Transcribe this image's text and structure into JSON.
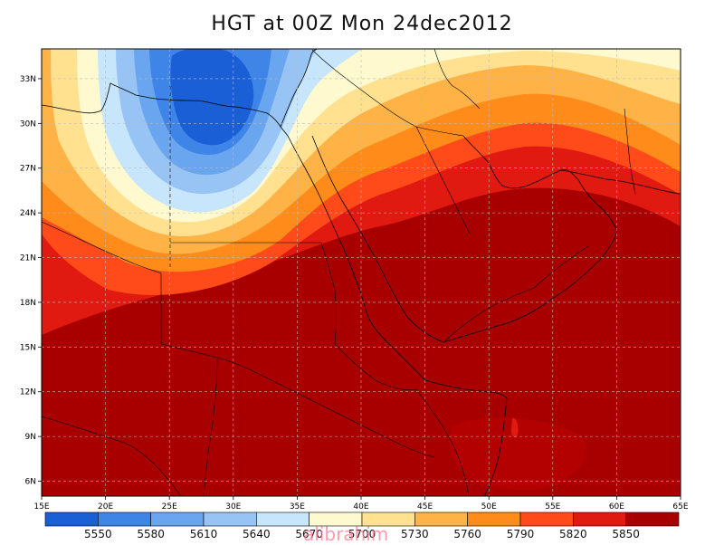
{
  "map": {
    "title": "HGT at 00Z Mon 24dec2012",
    "variable": "HGT",
    "lon_range": [
      15,
      65
    ],
    "lat_range": [
      5,
      35
    ],
    "lat_ticks": [
      "33N",
      "30N",
      "27N",
      "24N",
      "21N",
      "18N",
      "15N",
      "12N",
      "9N",
      "6N"
    ],
    "lon_ticks": [
      "15E",
      "20E",
      "25E",
      "30E",
      "35E",
      "40E",
      "45E",
      "50E",
      "55E",
      "60E",
      "65E"
    ],
    "grid_lines": true,
    "colorbar": {
      "levels": [
        "5550",
        "5580",
        "5610",
        "5640",
        "5670",
        "5700",
        "5730",
        "5760",
        "5790",
        "5820",
        "5850"
      ],
      "colors": [
        "#1a5fd6",
        "#3f85e8",
        "#6aa6f0",
        "#97c4f5",
        "#c8e6fb",
        "#fff9d0",
        "#ffe190",
        "#ffb347",
        "#ff8c1a",
        "#ff4a1a",
        "#e01a10",
        "#a80000"
      ]
    },
    "field_colors": {
      "c5550": "#1a5fd6",
      "c5580": "#3f85e8",
      "c5610": "#6aa6f0",
      "c5640": "#97c4f5",
      "c5670": "#c8e6fb",
      "c5700": "#fff9d0",
      "c5730": "#ffe190",
      "c5760": "#ffb347",
      "c5790": "#ff8c1a",
      "c5820": "#ff4a1a",
      "c5850": "#e01a10",
      "c5880": "#a80000",
      "c5880b": "#b30000"
    }
  },
  "watermark": "alibrahim"
}
